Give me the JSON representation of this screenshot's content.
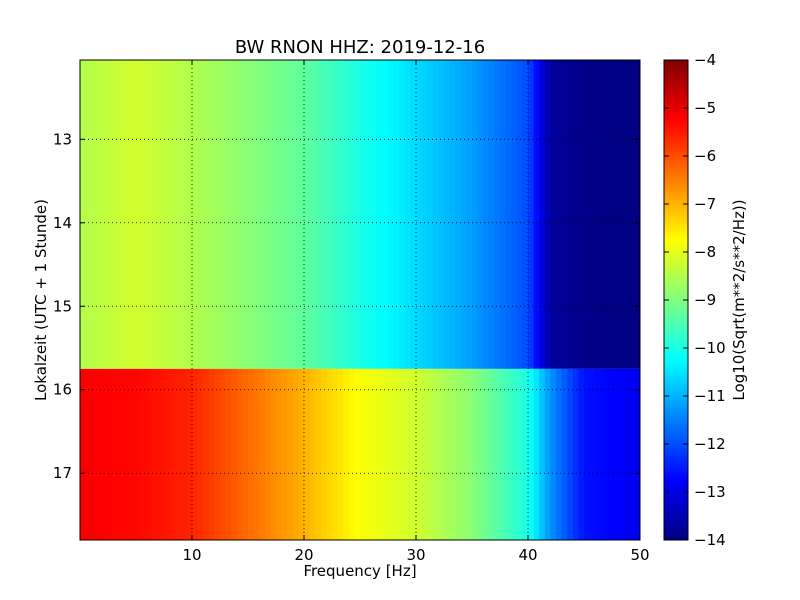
{
  "chart_data": {
    "type": "heatmap",
    "title": "BW RNON HHZ: 2019-12-16",
    "xlabel": "Frequency [Hz]",
    "ylabel": "Lokalzeit (UTC + 1 Stunde)",
    "xlim": [
      0,
      50
    ],
    "ylim": [
      12.05,
      17.8
    ],
    "y_inverted": true,
    "grid": true,
    "x_ticks": [
      10,
      20,
      30,
      40,
      50
    ],
    "y_ticks": [
      13,
      14,
      15,
      16,
      17
    ],
    "colorbar": {
      "label": "Log10(Sqrt(m**2/s**2/Hz))",
      "range": [
        -14,
        -4
      ],
      "ticks": [
        -4,
        -5,
        -6,
        -7,
        -8,
        -9,
        -10,
        -11,
        -12,
        -13,
        -14
      ],
      "colormap": "jet",
      "colors": [
        "#00007f",
        "#0000ff",
        "#007fff",
        "#00ffff",
        "#7fff7f",
        "#ffff00",
        "#ff7f00",
        "#ff0000",
        "#7f0000"
      ]
    },
    "regions": [
      {
        "period": "before 15.75",
        "time_range": [
          12.05,
          15.75
        ],
        "frequency_hz": [
          0,
          5,
          10,
          15,
          20,
          25,
          30,
          35,
          40,
          42,
          45,
          50
        ],
        "level": [
          -8.5,
          -8.2,
          -8.5,
          -8.9,
          -9.3,
          -10.0,
          -10.6,
          -11.2,
          -12.0,
          -13.7,
          -13.9,
          -14.0
        ]
      },
      {
        "period": "after 15.75",
        "time_range": [
          15.75,
          17.8
        ],
        "frequency_hz": [
          0,
          5,
          10,
          15,
          20,
          25,
          30,
          35,
          40,
          42,
          45,
          50
        ],
        "level": [
          -5.2,
          -5.3,
          -5.6,
          -6.3,
          -7.0,
          -7.8,
          -8.2,
          -8.9,
          -10.0,
          -11.3,
          -12.6,
          -12.9
        ]
      }
    ]
  }
}
